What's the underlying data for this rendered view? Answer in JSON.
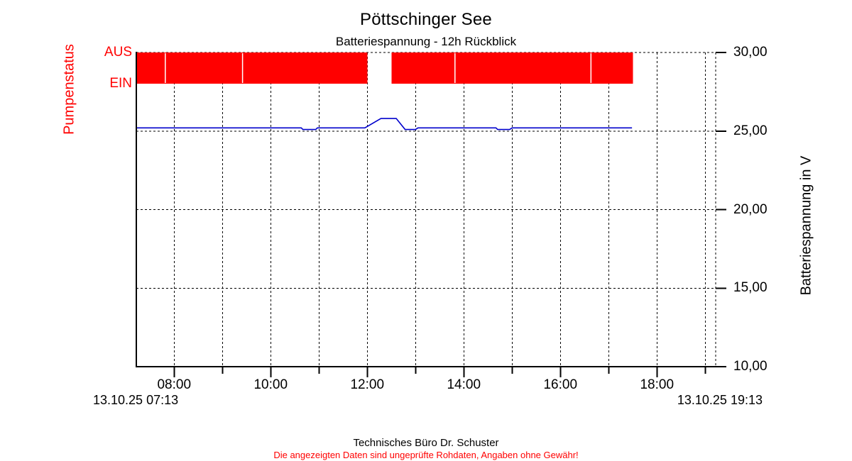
{
  "chart_data": {
    "type": "line",
    "title": "Pöttschinger See",
    "subtitle": "Batteriespannung - 12h Rückblick",
    "ylabel": "Batteriespannung in V",
    "ylim": [
      10,
      30
    ],
    "grid": true,
    "line_color": "#0000cc",
    "y_ticks": [
      {
        "value": 30,
        "label": "30,00"
      },
      {
        "value": 25,
        "label": "25,00"
      },
      {
        "value": 20,
        "label": "20,00"
      },
      {
        "value": 15,
        "label": "15,00"
      },
      {
        "value": 10,
        "label": "10,00"
      }
    ],
    "x_range": {
      "start": "07:13",
      "end": "19:13",
      "start_label": "13.10.25 07:13",
      "end_label": "13.10.25 19:13"
    },
    "x_ticks": [
      {
        "time": "08:00",
        "label": "08:00"
      },
      {
        "time": "10:00",
        "label": "10:00"
      },
      {
        "time": "12:00",
        "label": "12:00"
      },
      {
        "time": "14:00",
        "label": "14:00"
      },
      {
        "time": "16:00",
        "label": "16:00"
      },
      {
        "time": "18:00",
        "label": "18:00"
      }
    ],
    "x_minor_ticks": [
      "09:00",
      "11:00",
      "13:00",
      "15:00",
      "17:00",
      "19:00"
    ],
    "series": [
      {
        "name": "Batteriespannung",
        "unit": "V",
        "points": [
          [
            "07:13",
            25.2
          ],
          [
            "10:38",
            25.2
          ],
          [
            "10:40",
            25.1
          ],
          [
            "10:56",
            25.1
          ],
          [
            "10:58",
            25.2
          ],
          [
            "11:57",
            25.2
          ],
          [
            "12:17",
            25.8
          ],
          [
            "12:36",
            25.8
          ],
          [
            "12:47",
            25.1
          ],
          [
            "13:00",
            25.1
          ],
          [
            "13:03",
            25.2
          ],
          [
            "14:40",
            25.2
          ],
          [
            "14:42",
            25.1
          ],
          [
            "14:57",
            25.1
          ],
          [
            "15:00",
            25.2
          ],
          [
            "17:29",
            25.2
          ]
        ]
      }
    ],
    "pump_status": {
      "label": "Pumpenstatus",
      "levels": [
        "AUS",
        "EIN"
      ],
      "color": "#ff0000",
      "aus_intervals": [
        [
          "07:13",
          "07:49"
        ],
        [
          "07:49",
          "09:25"
        ],
        [
          "09:25",
          "12:00"
        ],
        [
          "12:30",
          "13:49"
        ],
        [
          "13:49",
          "16:38"
        ],
        [
          "16:38",
          "17:30"
        ]
      ]
    }
  },
  "footer": {
    "company": "Technisches Büro Dr. Schuster",
    "disclaimer": "Die angezeigten Daten sind ungeprüfte Rohdaten, Angaben ohne Gewähr!"
  }
}
